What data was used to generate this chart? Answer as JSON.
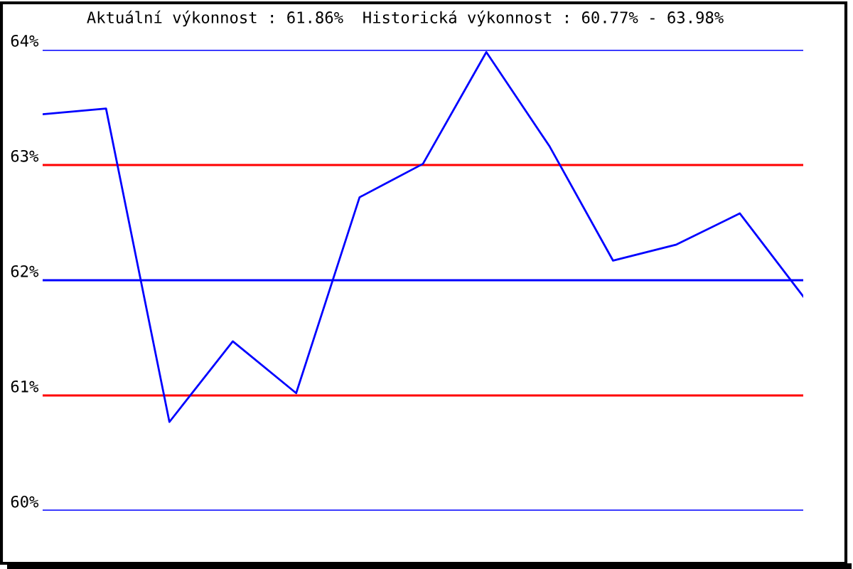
{
  "chart_data": {
    "type": "line",
    "title": "Aktuální výkonnost : 61.86%  Historická výkonnost : 60.77% - 63.98%",
    "categories": [
      null,
      null,
      null,
      null,
      null,
      null,
      null,
      null,
      null,
      null,
      null,
      null,
      null
    ],
    "series": [
      {
        "color": "#0000ff",
        "values": [
          63.44,
          63.49,
          60.77,
          61.47,
          61.02,
          62.72,
          63.01,
          63.98,
          63.16,
          62.17,
          62.31,
          62.58,
          61.86
        ]
      }
    ],
    "ylim": [
      60,
      64
    ],
    "yticks": [
      {
        "value": 60,
        "label": "60%"
      },
      {
        "value": 61,
        "label": "61%"
      },
      {
        "value": 62,
        "label": "62%"
      },
      {
        "value": 63,
        "label": "63%"
      },
      {
        "value": 64,
        "label": "64%"
      }
    ],
    "ref_lines": [
      {
        "axis": "y",
        "value": 60,
        "label": null,
        "color": "#0000ff"
      },
      {
        "axis": "y",
        "value": 61,
        "label": null,
        "color": "#ff0000"
      },
      {
        "axis": "y",
        "value": 62,
        "label": null,
        "color": "#0000ff"
      },
      {
        "axis": "y",
        "value": 63,
        "label": null,
        "color": "#ff0000"
      },
      {
        "axis": "y",
        "value": 64,
        "label": null,
        "color": "#0000ff"
      }
    ],
    "tick_labels": "y",
    "grid": false,
    "marker": "none",
    "line_style": "solid"
  }
}
